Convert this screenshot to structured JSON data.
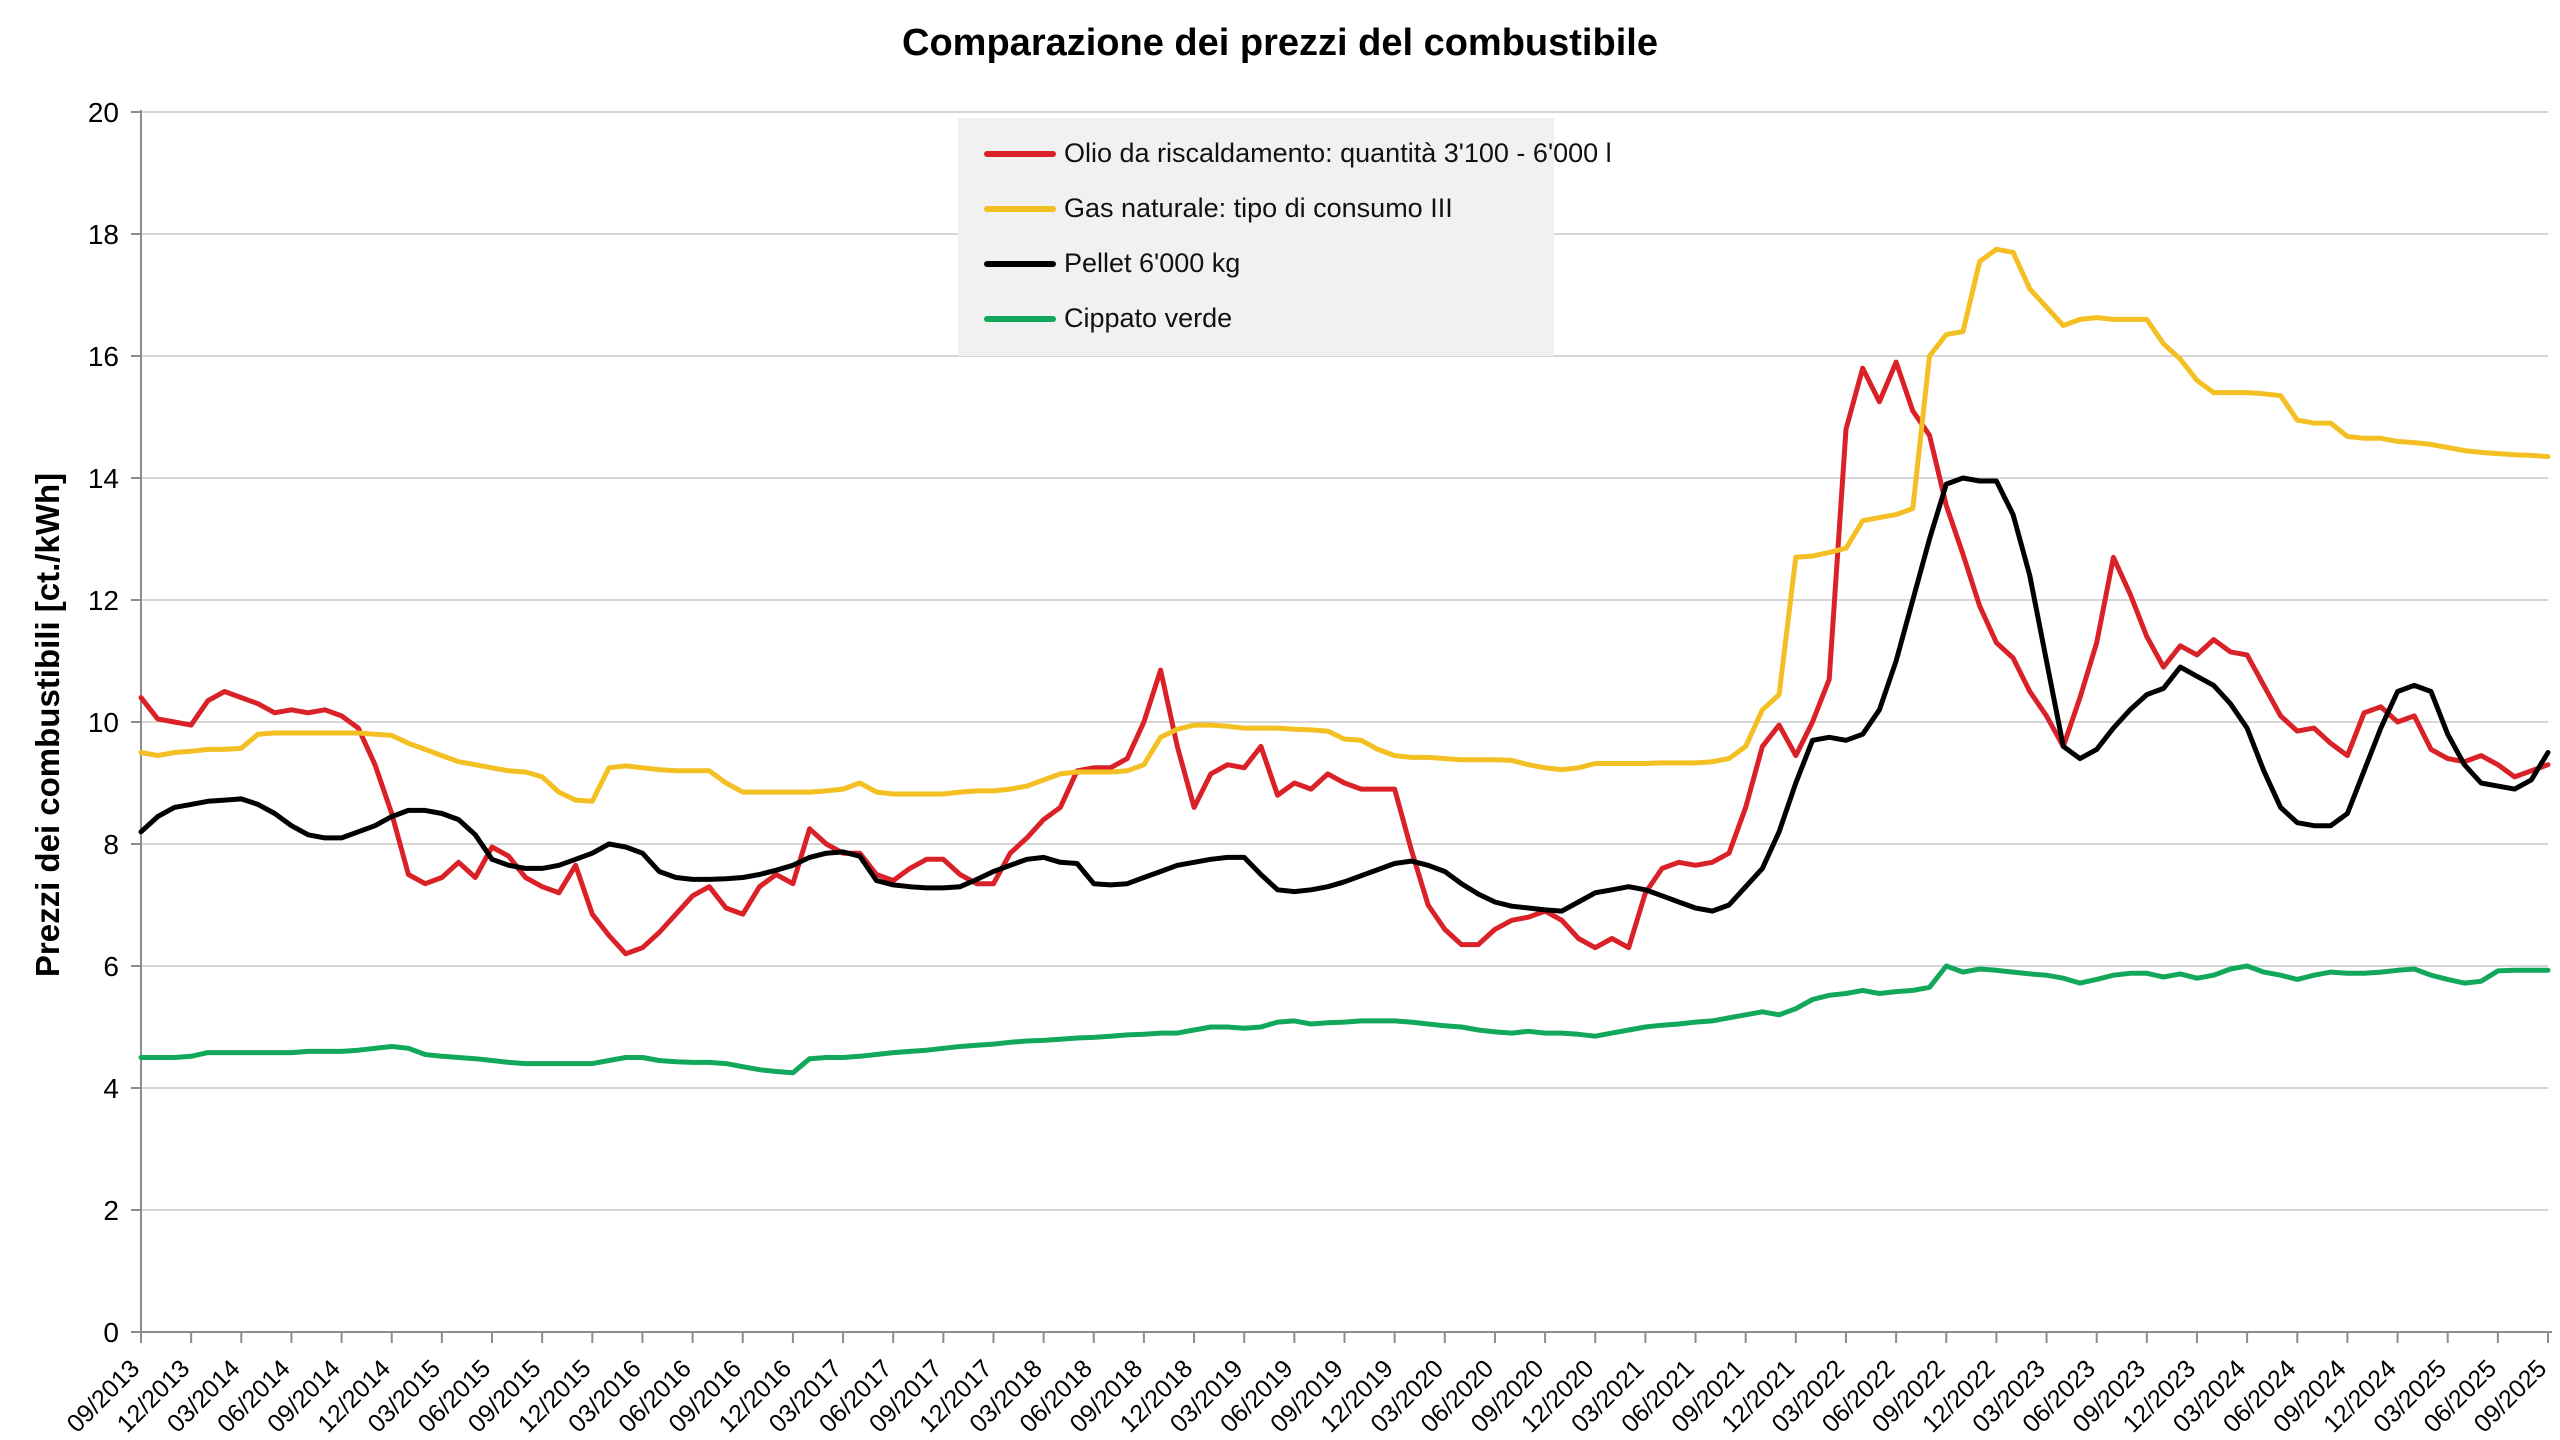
{
  "title": "Comparazione dei prezzi del combustibile",
  "y_axis": {
    "title": "Prezzi dei combustibili [ct./kWh]",
    "ticks": [
      0,
      2,
      4,
      6,
      8,
      10,
      12,
      14,
      16,
      18,
      20
    ]
  },
  "x_axis": {
    "labels": [
      "09/2013",
      "12/2013",
      "03/2014",
      "06/2014",
      "09/2014",
      "12/2014",
      "03/2015",
      "06/2015",
      "09/2015",
      "12/2015",
      "03/2016",
      "06/2016",
      "09/2016",
      "12/2016",
      "03/2017",
      "06/2017",
      "09/2017",
      "12/2017",
      "03/2018",
      "06/2018",
      "09/2018",
      "12/2018",
      "03/2019",
      "06/2019",
      "09/2019",
      "12/2019",
      "03/2020",
      "06/2020",
      "09/2020",
      "12/2020",
      "03/2021",
      "06/2021",
      "09/2021",
      "12/2021",
      "03/2022",
      "06/2022",
      "09/2022",
      "12/2022",
      "03/2023",
      "06/2023",
      "09/2023",
      "12/2023",
      "03/2024",
      "06/2024",
      "09/2024",
      "12/2024",
      "03/2025",
      "06/2025",
      "09/2025"
    ]
  },
  "chart_data": {
    "type": "line",
    "title": "Comparazione dei prezzi del combustibile",
    "xlabel": "",
    "ylabel": "Prezzi dei combustibili [ct./kWh]",
    "ylim": [
      0,
      20
    ],
    "grid": "horizontal",
    "legend_position": "top-center",
    "x_start": "09/2013",
    "x_end": "09/2025",
    "x_step_months": 1,
    "quarterly_tick_labels": [
      "09/2013",
      "12/2013",
      "03/2014",
      "06/2014",
      "09/2014",
      "12/2014",
      "03/2015",
      "06/2015",
      "09/2015",
      "12/2015",
      "03/2016",
      "06/2016",
      "09/2016",
      "12/2016",
      "03/2017",
      "06/2017",
      "09/2017",
      "12/2017",
      "03/2018",
      "06/2018",
      "09/2018",
      "12/2018",
      "03/2019",
      "06/2019",
      "09/2019",
      "12/2019",
      "03/2020",
      "06/2020",
      "09/2020",
      "12/2020",
      "03/2021",
      "06/2021",
      "09/2021",
      "12/2021",
      "03/2022",
      "06/2022",
      "09/2022",
      "12/2022",
      "03/2023",
      "06/2023",
      "09/2023",
      "12/2023",
      "03/2024",
      "06/2024",
      "09/2024",
      "12/2024",
      "03/2025",
      "06/2025",
      "09/2025"
    ],
    "series": [
      {
        "name": "Olio da riscaldamento: quantità 3'100 - 6'000 l",
        "color": "#da2128",
        "values": [
          10.4,
          10.05,
          10.0,
          9.95,
          10.35,
          10.5,
          10.4,
          10.3,
          10.15,
          10.2,
          10.15,
          10.2,
          10.1,
          9.9,
          9.3,
          8.5,
          7.5,
          7.35,
          7.45,
          7.7,
          7.45,
          7.95,
          7.8,
          7.45,
          7.3,
          7.2,
          7.65,
          6.85,
          6.5,
          6.2,
          6.3,
          6.55,
          6.85,
          7.15,
          7.3,
          6.95,
          6.85,
          7.3,
          7.5,
          7.35,
          8.25,
          8.0,
          7.85,
          7.85,
          7.5,
          7.4,
          7.6,
          7.75,
          7.75,
          7.5,
          7.35,
          7.35,
          7.85,
          8.1,
          8.4,
          8.6,
          9.2,
          9.25,
          9.25,
          9.4,
          10.0,
          10.85,
          9.6,
          8.6,
          9.15,
          9.3,
          9.25,
          9.6,
          8.8,
          9.0,
          8.9,
          9.15,
          9.0,
          8.9,
          8.9,
          8.9,
          7.9,
          7.0,
          6.6,
          6.35,
          6.35,
          6.6,
          6.75,
          6.8,
          6.9,
          6.75,
          6.45,
          6.3,
          6.45,
          6.3,
          7.2,
          7.6,
          7.7,
          7.65,
          7.7,
          7.85,
          8.6,
          9.6,
          9.95,
          9.45,
          10.0,
          10.7,
          14.8,
          15.8,
          15.25,
          15.9,
          15.1,
          14.7,
          13.55,
          12.75,
          11.9,
          11.3,
          11.05,
          10.5,
          10.1,
          9.6,
          10.4,
          11.3,
          12.7,
          12.1,
          11.4,
          10.9,
          11.25,
          11.1,
          11.35,
          11.15,
          11.1,
          10.6,
          10.1,
          9.85,
          9.9,
          9.65,
          9.45,
          10.15,
          10.25,
          10.0,
          10.1,
          9.55,
          9.4,
          9.35,
          9.45,
          9.3,
          9.1,
          9.2,
          9.3
        ]
      },
      {
        "name": "Gas naturale: tipo di consumo III",
        "color": "#f3bf23",
        "values": [
          9.5,
          9.45,
          9.5,
          9.52,
          9.55,
          9.55,
          9.57,
          9.8,
          9.82,
          9.82,
          9.82,
          9.82,
          9.82,
          9.82,
          9.8,
          9.78,
          9.65,
          9.55,
          9.45,
          9.35,
          9.3,
          9.25,
          9.2,
          9.18,
          9.1,
          8.85,
          8.72,
          8.7,
          9.25,
          9.28,
          9.25,
          9.22,
          9.2,
          9.2,
          9.2,
          9.0,
          8.85,
          8.85,
          8.85,
          8.85,
          8.85,
          8.87,
          8.9,
          9.0,
          8.85,
          8.82,
          8.82,
          8.82,
          8.82,
          8.85,
          8.87,
          8.87,
          8.9,
          8.95,
          9.05,
          9.15,
          9.18,
          9.18,
          9.18,
          9.2,
          9.3,
          9.75,
          9.88,
          9.95,
          9.95,
          9.93,
          9.9,
          9.9,
          9.9,
          9.88,
          9.87,
          9.85,
          9.72,
          9.7,
          9.55,
          9.45,
          9.42,
          9.42,
          9.4,
          9.38,
          9.38,
          9.38,
          9.37,
          9.3,
          9.25,
          9.22,
          9.25,
          9.32,
          9.32,
          9.32,
          9.32,
          9.33,
          9.33,
          9.33,
          9.35,
          9.4,
          9.6,
          10.2,
          10.45,
          12.7,
          12.72,
          12.78,
          12.85,
          13.3,
          13.35,
          13.4,
          13.5,
          16.0,
          16.35,
          16.4,
          17.55,
          17.75,
          17.7,
          17.1,
          16.8,
          16.5,
          16.6,
          16.63,
          16.6,
          16.6,
          16.6,
          16.2,
          15.95,
          15.6,
          15.4,
          15.4,
          15.4,
          15.38,
          15.35,
          14.95,
          14.9,
          14.9,
          14.68,
          14.65,
          14.65,
          14.6,
          14.58,
          14.55,
          14.5,
          14.45,
          14.42,
          14.4,
          14.38,
          14.37,
          14.35
        ]
      },
      {
        "name": "Pellet 6'000 kg",
        "color": "#000000",
        "values": [
          8.2,
          8.45,
          8.6,
          8.65,
          8.7,
          8.72,
          8.74,
          8.65,
          8.5,
          8.3,
          8.15,
          8.1,
          8.1,
          8.2,
          8.3,
          8.45,
          8.55,
          8.55,
          8.5,
          8.4,
          8.15,
          7.75,
          7.65,
          7.6,
          7.6,
          7.65,
          7.75,
          7.85,
          8.0,
          7.95,
          7.85,
          7.55,
          7.45,
          7.42,
          7.42,
          7.43,
          7.45,
          7.5,
          7.57,
          7.65,
          7.78,
          7.85,
          7.87,
          7.8,
          7.4,
          7.33,
          7.3,
          7.28,
          7.28,
          7.3,
          7.42,
          7.55,
          7.65,
          7.75,
          7.78,
          7.7,
          7.68,
          7.35,
          7.33,
          7.35,
          7.45,
          7.55,
          7.65,
          7.7,
          7.75,
          7.78,
          7.78,
          7.5,
          7.25,
          7.22,
          7.25,
          7.3,
          7.38,
          7.48,
          7.58,
          7.68,
          7.72,
          7.65,
          7.55,
          7.35,
          7.18,
          7.05,
          6.98,
          6.95,
          6.92,
          6.9,
          7.05,
          7.2,
          7.25,
          7.3,
          7.25,
          7.15,
          7.05,
          6.95,
          6.9,
          7.0,
          7.3,
          7.6,
          8.2,
          9.0,
          9.7,
          9.75,
          9.7,
          9.8,
          10.2,
          11.0,
          12.0,
          13.0,
          13.9,
          14.0,
          13.95,
          13.95,
          13.4,
          12.4,
          11.0,
          9.6,
          9.4,
          9.55,
          9.9,
          10.2,
          10.45,
          10.55,
          10.9,
          10.75,
          10.6,
          10.3,
          9.9,
          9.2,
          8.6,
          8.35,
          8.3,
          8.3,
          8.5,
          9.2,
          9.9,
          10.5,
          10.6,
          10.5,
          9.8,
          9.3,
          9.0,
          8.95,
          8.9,
          9.05,
          9.5
        ]
      },
      {
        "name": "Cippato verde",
        "color": "#12a85c",
        "values": [
          4.5,
          4.5,
          4.5,
          4.52,
          4.58,
          4.58,
          4.58,
          4.58,
          4.58,
          4.58,
          4.6,
          4.6,
          4.6,
          4.62,
          4.65,
          4.68,
          4.65,
          4.55,
          4.52,
          4.5,
          4.48,
          4.45,
          4.42,
          4.4,
          4.4,
          4.4,
          4.4,
          4.4,
          4.45,
          4.5,
          4.5,
          4.45,
          4.43,
          4.42,
          4.42,
          4.4,
          4.35,
          4.3,
          4.27,
          4.25,
          4.48,
          4.5,
          4.5,
          4.52,
          4.55,
          4.58,
          4.6,
          4.62,
          4.65,
          4.68,
          4.7,
          4.72,
          4.75,
          4.77,
          4.78,
          4.8,
          4.82,
          4.83,
          4.85,
          4.87,
          4.88,
          4.9,
          4.9,
          4.95,
          5.0,
          5.0,
          4.98,
          5.0,
          5.08,
          5.1,
          5.05,
          5.07,
          5.08,
          5.1,
          5.1,
          5.1,
          5.08,
          5.05,
          5.02,
          5.0,
          4.95,
          4.92,
          4.9,
          4.93,
          4.9,
          4.9,
          4.88,
          4.85,
          4.9,
          4.95,
          5.0,
          5.03,
          5.05,
          5.08,
          5.1,
          5.15,
          5.2,
          5.25,
          5.2,
          5.3,
          5.45,
          5.52,
          5.55,
          5.6,
          5.55,
          5.58,
          5.6,
          5.65,
          6.0,
          5.9,
          5.95,
          5.93,
          5.9,
          5.87,
          5.85,
          5.8,
          5.72,
          5.78,
          5.85,
          5.88,
          5.88,
          5.82,
          5.87,
          5.8,
          5.85,
          5.95,
          6.0,
          5.9,
          5.85,
          5.78,
          5.85,
          5.9,
          5.88,
          5.88,
          5.9,
          5.93,
          5.95,
          5.85,
          5.78,
          5.72,
          5.75,
          5.92,
          5.93,
          5.93,
          5.93
        ]
      }
    ]
  },
  "colors": {
    "grid": "#c9c9c9",
    "axis": "#8c8c8c",
    "legend_background": "#f1f1f1",
    "text": "#000000"
  }
}
